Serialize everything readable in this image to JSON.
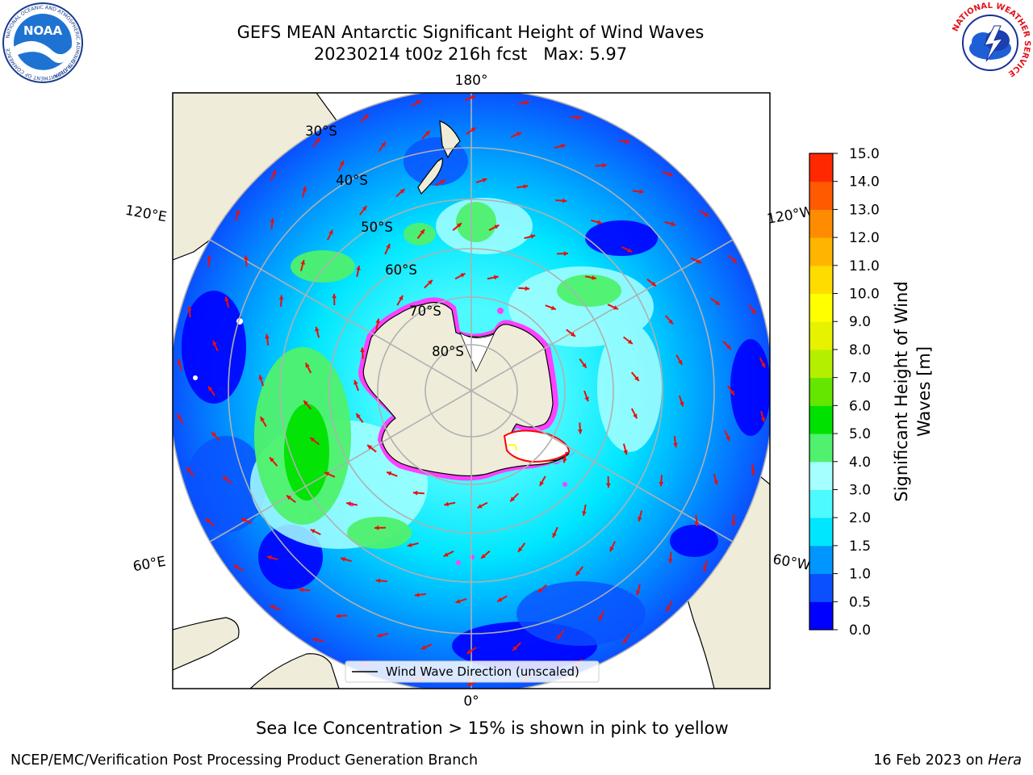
{
  "header": {
    "title_line1": "GEFS MEAN Antarctic Significant Height of Wind Waves",
    "title_line2": "20230214 t00z 216h fcst   Max: 5.97"
  },
  "logos": {
    "left": {
      "name": "NOAA",
      "ring_text": "NATIONAL OCEANIC AND ATMOSPHERIC ADMINISTRATION",
      "ring_text_bottom": "U.S. DEPARTMENT OF COMMERCE"
    },
    "right": {
      "ring_text": "NATIONAL WEATHER SERVICE"
    }
  },
  "map": {
    "projection": "south-polar-stereographic",
    "longitude_labels": {
      "top": "180°",
      "upper_left": "120°E",
      "upper_right": "120°W",
      "lower_left": "60°E",
      "lower_right": "60°W",
      "bottom": "0°"
    },
    "latitude_labels": [
      "30°S",
      "40°S",
      "50°S",
      "60°S",
      "70°S",
      "80°S"
    ],
    "legend_text": "Wind Wave Direction (unscaled)",
    "arrow_color": "#e8100c"
  },
  "colorbar": {
    "label_line1": "Significant Height of Wind",
    "label_line2": "Waves [m]",
    "ticks": [
      "0.0",
      "0.5",
      "1.0",
      "1.5",
      "2.0",
      "3.0",
      "4.0",
      "5.0",
      "6.0",
      "7.0",
      "8.0",
      "9.0",
      "10.0",
      "11.0",
      "12.0",
      "13.0",
      "14.0",
      "15.0"
    ],
    "colors": [
      "#0000ff",
      "#0a50ff",
      "#0096ff",
      "#00e6ff",
      "#4cfaff",
      "#a6ffff",
      "#4ff16e",
      "#00e100",
      "#64e600",
      "#b4ef00",
      "#e6f200",
      "#ffff00",
      "#ffdc00",
      "#ffb400",
      "#ff8c00",
      "#ff5a00",
      "#ff2800"
    ]
  },
  "caption": {
    "sea_ice": "Sea Ice Concentration > 15% is shown in pink to yellow"
  },
  "footer": {
    "left": "NCEP/EMC/Verification Post Processing Product Generation Branch",
    "right_date": "16 Feb 2023 on ",
    "right_host": "Hera"
  }
}
